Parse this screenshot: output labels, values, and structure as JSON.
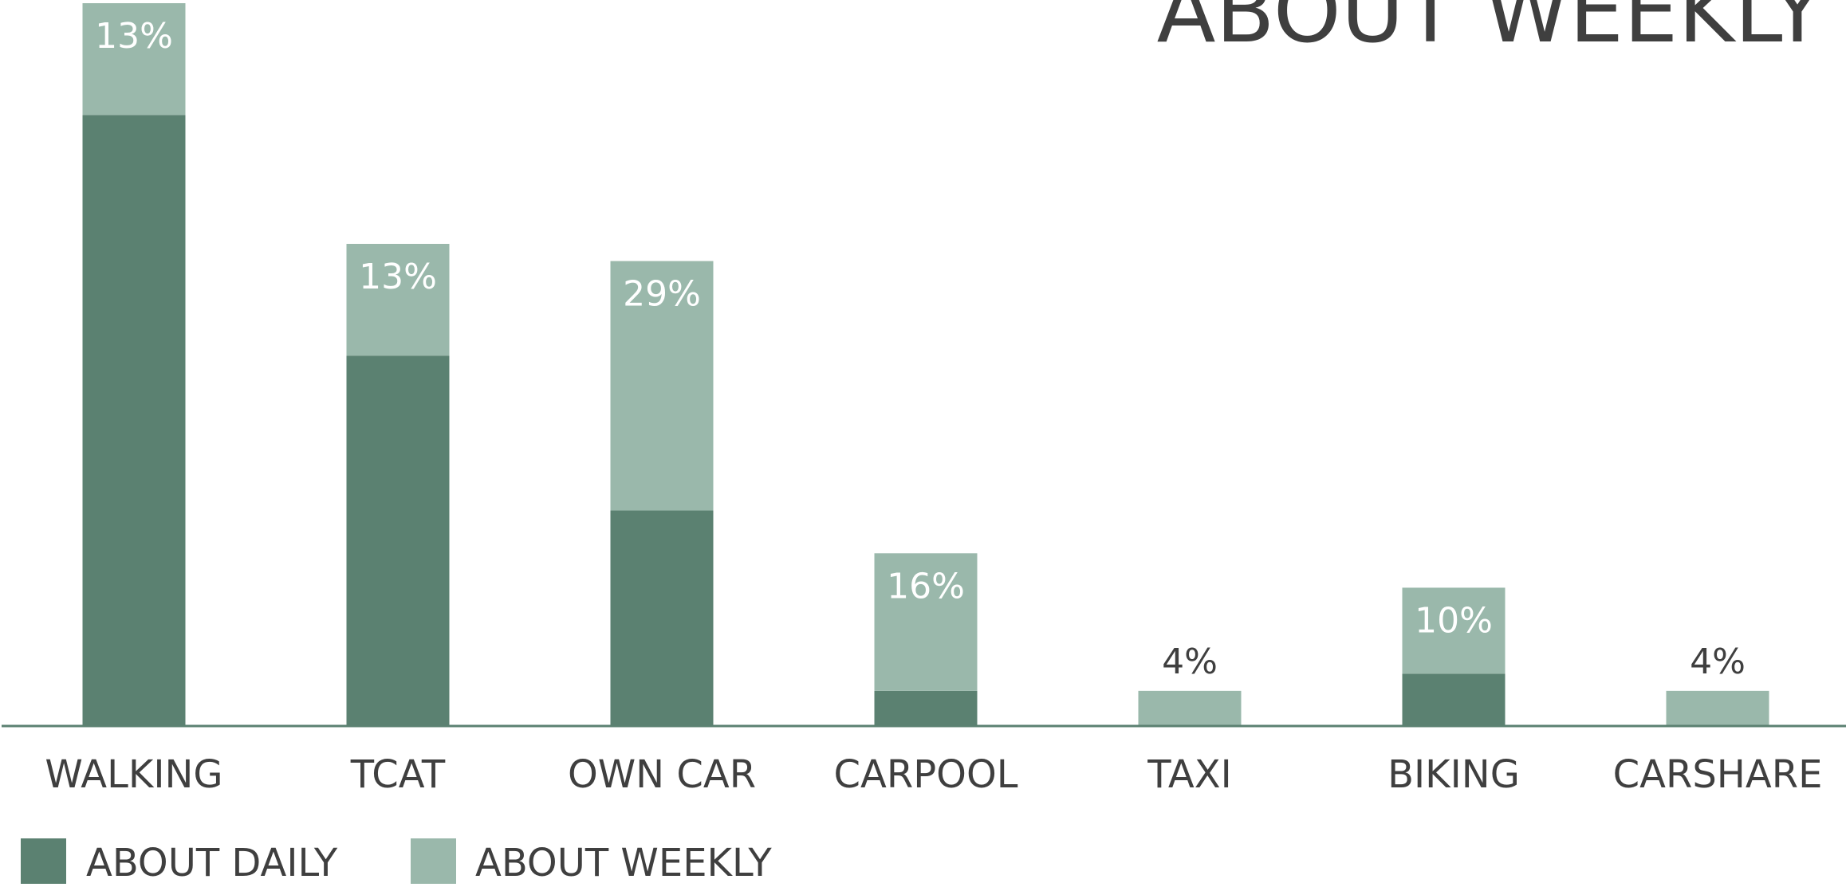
{
  "corner_title": "ABOUT WEEKLY",
  "colors": {
    "daily": "#5b8171",
    "weekly": "#9ab8ab",
    "axis": "#5b8171",
    "text_dark": "#3f3f3f",
    "label_on_bar": "#ffffff"
  },
  "chart_data": {
    "type": "bar",
    "stacked": true,
    "categories": [
      "WALKING",
      "TCAT",
      "OWN CAR",
      "CARPOOL",
      "TAXI",
      "BIKING",
      "CARSHARE"
    ],
    "series": [
      {
        "name": "ABOUT DAILY",
        "values": [
          71,
          43,
          25,
          4,
          0,
          6,
          0
        ]
      },
      {
        "name": "ABOUT WEEKLY",
        "values": [
          13,
          13,
          29,
          16,
          4,
          10,
          4
        ],
        "data_labels": [
          "13%",
          "13%",
          "29%",
          "16%",
          "4%",
          "10%",
          "4%"
        ]
      }
    ],
    "ylim": [
      0,
      84
    ],
    "grid": false,
    "legend_position": "bottom-left",
    "title": "",
    "xlabel": "",
    "ylabel": ""
  }
}
